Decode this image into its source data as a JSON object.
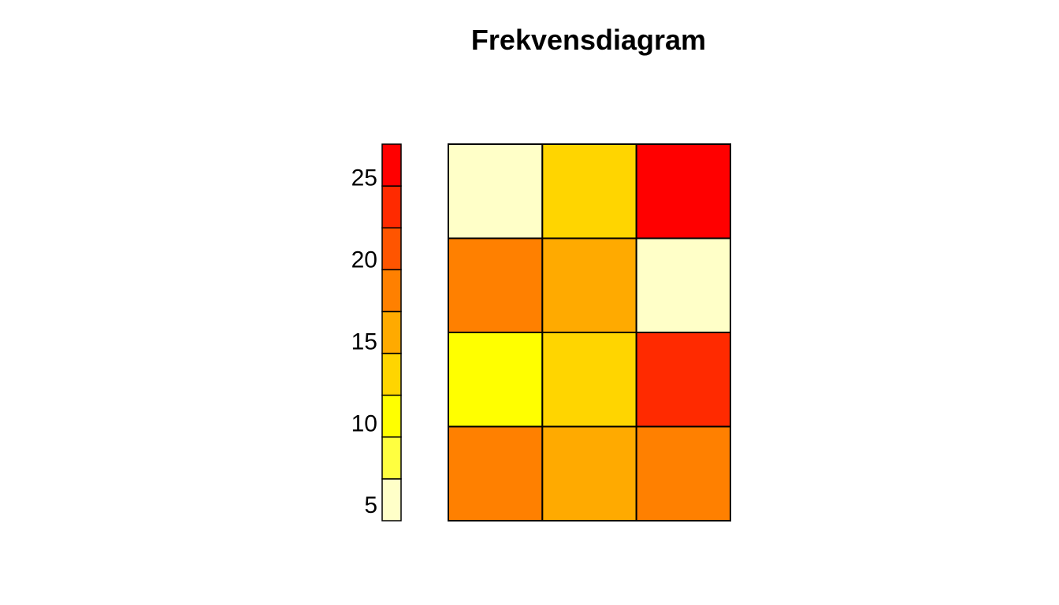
{
  "chart_data": {
    "type": "heatmap",
    "title": "Frekvensdiagram",
    "rows": 4,
    "cols": 3,
    "values": [
      [
        4,
        13,
        26
      ],
      [
        17,
        15,
        4
      ],
      [
        10,
        13,
        23
      ],
      [
        17,
        15,
        17
      ]
    ],
    "legend": {
      "position": "left",
      "ticks": [
        "5",
        "10",
        "15",
        "20",
        "25"
      ],
      "tick_values": [
        5,
        10,
        15,
        20,
        25
      ],
      "range": [
        4,
        27
      ],
      "bins": 9,
      "colors": [
        "#FFFFC8",
        "#FFFF40",
        "#FFFF00",
        "#FFD500",
        "#FFAA00",
        "#FF8000",
        "#FF5500",
        "#FF2A00",
        "#FF0000"
      ]
    }
  }
}
